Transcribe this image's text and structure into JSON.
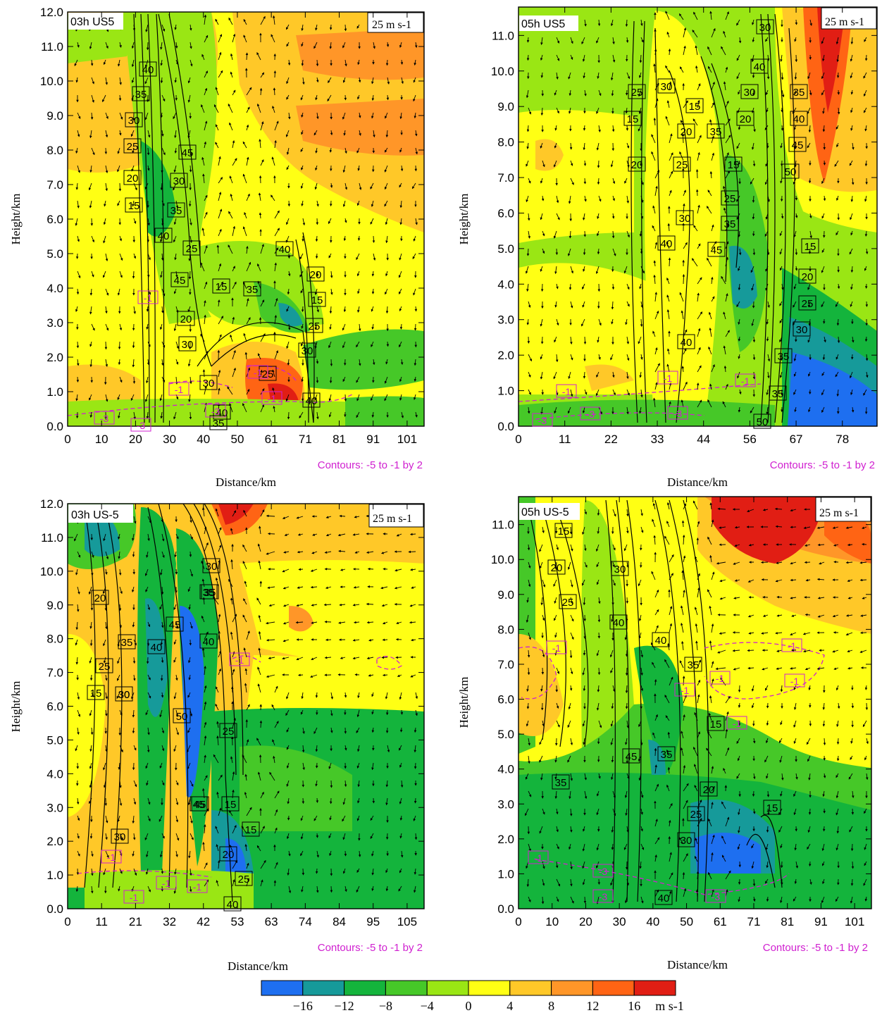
{
  "chart_data": [
    {
      "type": "heatmap",
      "panel_label": "03h US5",
      "xlabel": "Distance/km",
      "ylabel": "Height/km",
      "x_ticks": [
        "0",
        "10",
        "20",
        "30",
        "40",
        "50",
        "61",
        "71",
        "81",
        "91",
        "101"
      ],
      "y_ticks": [
        "0.0",
        "1.0",
        "2.0",
        "3.0",
        "4.0",
        "5.0",
        "6.0",
        "7.0",
        "8.0",
        "9.0",
        "10.0",
        "11.0",
        "12.0"
      ],
      "ylim": [
        0,
        12
      ],
      "xlim": [
        0,
        108
      ],
      "vector_reference": "25 m s-1",
      "contour_note": "Contours: -5 to -1 by 2",
      "black_contour_labels": [
        "40",
        "35",
        "30",
        "25",
        "20",
        "15",
        "45",
        "30",
        "35",
        "40",
        "25",
        "45",
        "15",
        "35",
        "20",
        "30",
        "30",
        "35",
        "40",
        "20",
        "15",
        "25",
        "30",
        "40",
        "25",
        "40"
      ],
      "magenta_contour_labels": [
        "-3",
        "-3",
        "-1",
        "-1",
        "-3",
        "-1",
        "-1"
      ]
    },
    {
      "type": "heatmap",
      "panel_label": "05h US5",
      "xlabel": "Distance/km",
      "ylabel": "Height/km",
      "x_ticks": [
        "0",
        "11",
        "22",
        "33",
        "44",
        "56",
        "67",
        "78"
      ],
      "y_ticks": [
        "0.0",
        "1.0",
        "2.0",
        "3.0",
        "4.0",
        "5.0",
        "6.0",
        "7.0",
        "8.0",
        "9.0",
        "10.0",
        "11.0"
      ],
      "ylim": [
        0,
        11.8
      ],
      "xlim": [
        0,
        85
      ],
      "vector_reference": "25 m s-1",
      "contour_note": "Contours: -5 to -1 by 2",
      "black_contour_labels": [
        "30",
        "40",
        "25",
        "30",
        "15",
        "30",
        "20",
        "15",
        "20",
        "35",
        "20",
        "25",
        "15",
        "50",
        "35",
        "25",
        "30",
        "35",
        "40",
        "45",
        "40",
        "45",
        "15",
        "20",
        "25",
        "30",
        "40",
        "35",
        "50",
        "35"
      ],
      "magenta_contour_labels": [
        "-1",
        "-1",
        "-1",
        "-3",
        "-3",
        "-3"
      ]
    },
    {
      "type": "heatmap",
      "panel_label": "03h US-5",
      "xlabel": "Distance/km",
      "ylabel": "Height/km",
      "x_ticks": [
        "0",
        "11",
        "21",
        "32",
        "42",
        "53",
        "63",
        "74",
        "84",
        "95",
        "105"
      ],
      "y_ticks": [
        "0.0",
        "1.0",
        "2.0",
        "3.0",
        "4.0",
        "5.0",
        "6.0",
        "7.0",
        "8.0",
        "9.0",
        "10.0",
        "11.0",
        "12.0"
      ],
      "ylim": [
        0,
        12
      ],
      "xlim": [
        0,
        111
      ],
      "vector_reference": "25 m s-1",
      "contour_note": "Contours: -5 to -1 by 2",
      "black_contour_labels": [
        "20",
        "25",
        "15",
        "35",
        "30",
        "40",
        "45",
        "50",
        "30",
        "35",
        "40",
        "25",
        "45",
        "15",
        "15",
        "20",
        "25",
        "30",
        "45",
        "40",
        "30",
        "35"
      ],
      "magenta_contour_labels": [
        "-1",
        "-1",
        "-1",
        "-1",
        "-1"
      ]
    },
    {
      "type": "heatmap",
      "panel_label": "05h US-5",
      "xlabel": "Distance/km",
      "ylabel": "Height/km",
      "x_ticks": [
        "0",
        "10",
        "20",
        "30",
        "40",
        "50",
        "61",
        "71",
        "81",
        "91",
        "101"
      ],
      "y_ticks": [
        "0.0",
        "1.0",
        "2.0",
        "3.0",
        "4.0",
        "5.0",
        "6.0",
        "7.0",
        "8.0",
        "9.0",
        "10.0",
        "11.0"
      ],
      "ylim": [
        0,
        11.8
      ],
      "xlim": [
        0,
        108
      ],
      "vector_reference": "25 m s-1",
      "contour_note": "Contours: -5 to -1 by 2",
      "black_contour_labels": [
        "15",
        "20",
        "25",
        "35",
        "40",
        "30",
        "40",
        "45",
        "35",
        "35",
        "15",
        "20",
        "25",
        "30",
        "15",
        "40"
      ],
      "magenta_contour_labels": [
        "-1",
        "-1",
        "-1",
        "-1",
        "-1",
        "-1",
        "-1",
        "-3",
        "-3",
        "-3"
      ]
    }
  ],
  "colorbar": {
    "tick_labels": [
      "−16",
      "−12",
      "−8",
      "−4",
      "0",
      "4",
      "8",
      "12",
      "16"
    ],
    "unit": "m s-1",
    "colors": [
      "#1e6ff0",
      "#169a9a",
      "#14b43c",
      "#46c828",
      "#9ae614",
      "#ffff14",
      "#ffc828",
      "#ff9628",
      "#ff6414",
      "#e11e14"
    ]
  }
}
